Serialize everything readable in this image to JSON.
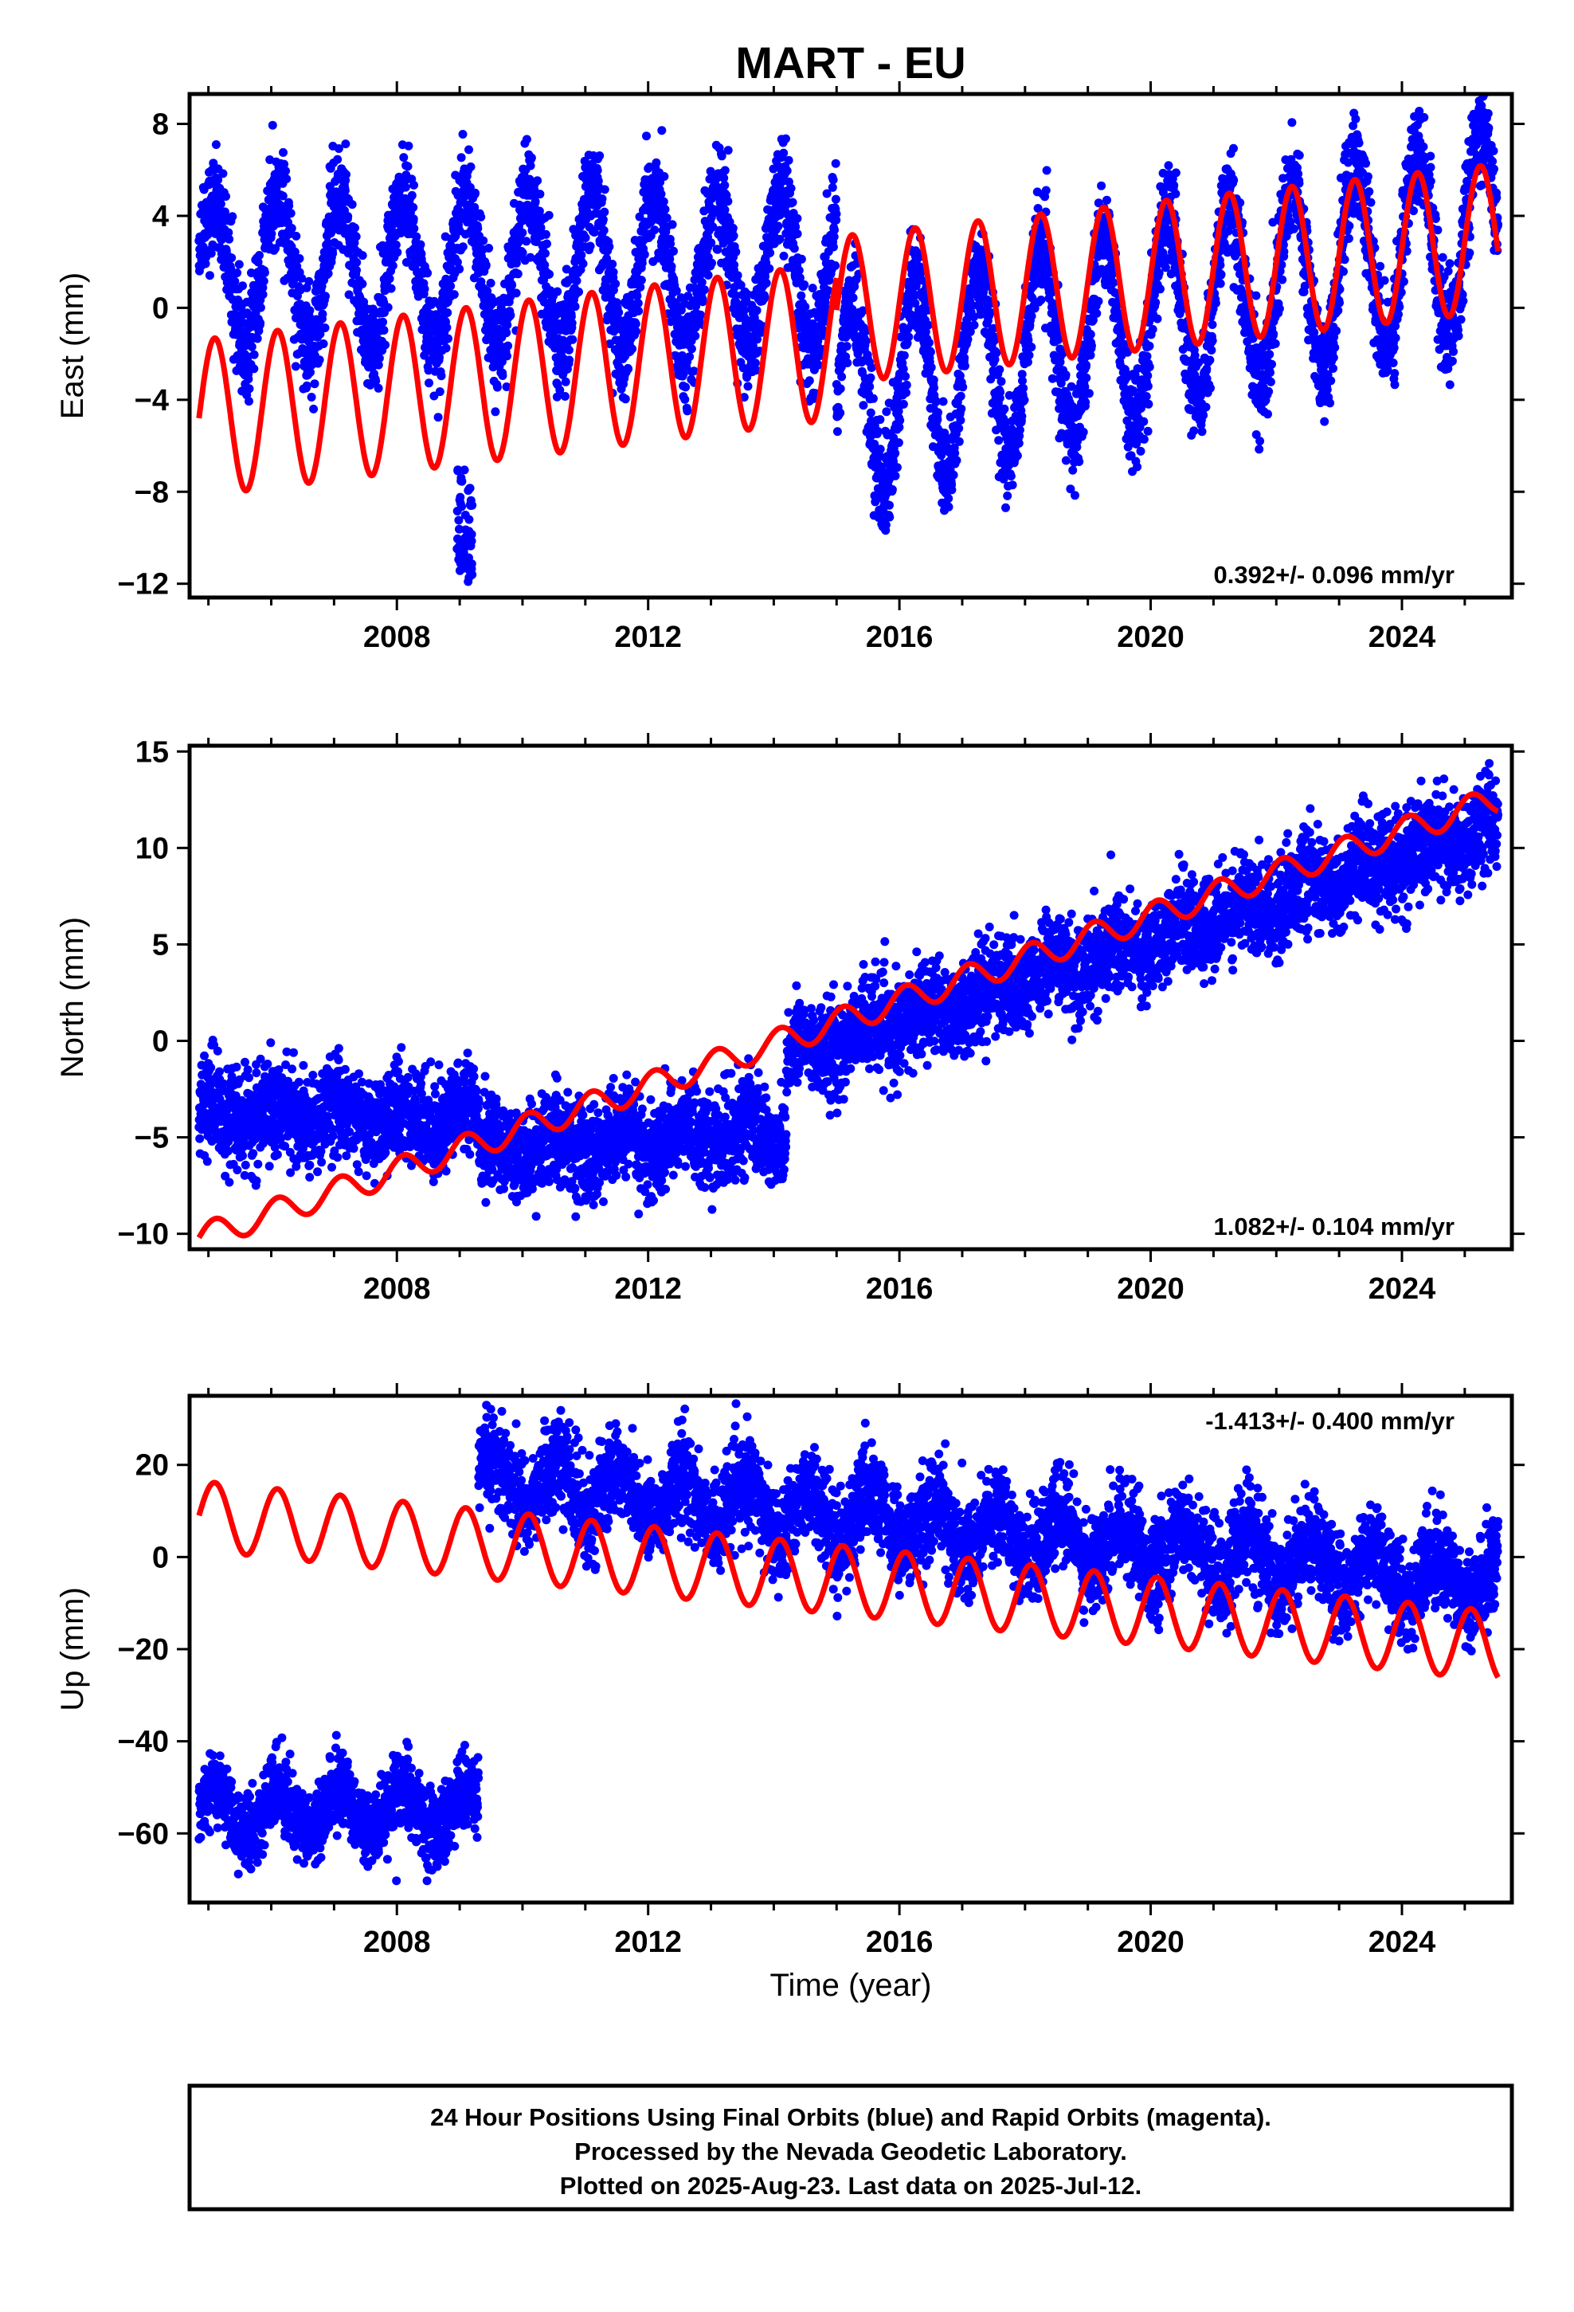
{
  "chart_data": {
    "type": "scatter",
    "title": "MART - EU",
    "xlabel": "Time (year)",
    "xlim": [
      2004.7,
      2025.75
    ],
    "x_ticks": [
      2008,
      2012,
      2016,
      2020,
      2024
    ],
    "x_tick_labels": [
      "2008",
      "2012",
      "2016",
      "2020",
      "2024"
    ],
    "data_start_year": 2004.85,
    "data_end_year": 2025.53,
    "colors": {
      "observed": "#0000ff",
      "model": "#ff0000"
    },
    "panels": [
      {
        "id": "east",
        "ylabel": "East (mm)",
        "ylim": [
          -12.6,
          9.3
        ],
        "y_ticks": [
          -12,
          -8,
          -4,
          0,
          4,
          8
        ],
        "y_tick_labels": [
          "−12",
          "−8",
          "−4",
          "0",
          "4",
          "8"
        ],
        "rate_label": "0.392+/- 0.096 mm/yr",
        "rate_position": "bottom-right",
        "observed_segments": [
          {
            "start": 2004.85,
            "end": 2015.0,
            "offset": 1.6,
            "trend": 0.0,
            "amplitude": 3.3,
            "noise": 1.1
          },
          {
            "start": 2015.0,
            "end": 2025.53,
            "offset": -4.2,
            "trend": 0.75,
            "amplitude": 4.2,
            "noise": 1.1
          }
        ],
        "observed_outliers": [
          {
            "start": 2008.95,
            "end": 2009.2,
            "min": -12.0,
            "max": -7.0
          }
        ],
        "model_segments": [
          {
            "start": 2004.85,
            "end": 2015.0,
            "offset": -4.8,
            "trend": 0.33,
            "amplitude": 3.4
          },
          {
            "start": 2015.0,
            "end": 2025.53,
            "offset": -0.1,
            "trend": 0.3,
            "amplitude": 3.2
          }
        ]
      },
      {
        "id": "north",
        "ylabel": "North (mm)",
        "ylim": [
          -10.8,
          15.3
        ],
        "y_ticks": [
          -10,
          -5,
          0,
          5,
          10,
          15
        ],
        "y_tick_labels": [
          "−10",
          "−5",
          "0",
          "5",
          "10",
          "15"
        ],
        "rate_label": "1.082+/- 0.104 mm/yr",
        "rate_position": "bottom-right",
        "observed_segments": [
          {
            "start": 2004.85,
            "end": 2009.3,
            "offset": -3.9,
            "trend": 0.0,
            "amplitude": 0.6,
            "noise": 1.2
          },
          {
            "start": 2009.3,
            "end": 2014.2,
            "offset": -5.8,
            "trend": 0.25,
            "amplitude": 0.7,
            "noise": 1.2
          },
          {
            "start": 2014.2,
            "end": 2025.53,
            "offset": 0.0,
            "trend": 1.05,
            "amplitude": 0.6,
            "noise": 1.2,
            "ref": 2015.0
          }
        ],
        "observed_outliers": [],
        "model_segments": [
          {
            "start": 2004.85,
            "end": 2025.53,
            "offset": -10.2,
            "trend": 1.1,
            "amplitude": 0.7
          }
        ]
      },
      {
        "id": "up",
        "ylabel": "Up (mm)",
        "ylim": [
          -75,
          35
        ],
        "y_ticks": [
          -60,
          -40,
          -20,
          0,
          20
        ],
        "y_tick_labels": [
          "−60",
          "−40",
          "−20",
          "0",
          "20"
        ],
        "rate_label": "-1.413+/- 0.400 mm/yr",
        "rate_position": "top-right",
        "observed_segments": [
          {
            "start": 2004.85,
            "end": 2009.3,
            "offset": -55.0,
            "trend": 0.0,
            "amplitude": 5.0,
            "noise": 4.0
          },
          {
            "start": 2009.3,
            "end": 2025.53,
            "offset": 17.0,
            "trend": -1.4,
            "amplitude": 5.0,
            "noise": 5.0,
            "ref": 2009.3
          }
        ],
        "observed_outliers": [],
        "model_segments": [
          {
            "start": 2004.85,
            "end": 2025.53,
            "offset": 9.0,
            "trend": -1.37,
            "amplitude": 7.5
          }
        ]
      }
    ],
    "footer": [
      "24 Hour Positions Using Final Orbits (blue) and Rapid Orbits (magenta).",
      "Processed by the Nevada Geodetic Laboratory.",
      "Plotted on 2025-Aug-23. Last data on 2025-Jul-12."
    ]
  }
}
